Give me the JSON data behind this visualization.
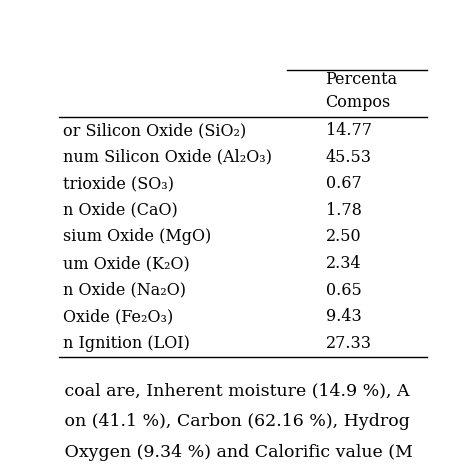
{
  "header_line1": "Percenta",
  "header_line2": "Compos",
  "rows": [
    [
      "or Silicon Oxide (SiO₂)",
      "14.77"
    ],
    [
      "num Silicon Oxide (Al₂O₃)",
      "45.53"
    ],
    [
      "trioxide (SO₃)",
      "0.67"
    ],
    [
      "n Oxide (CaO)",
      "1.78"
    ],
    [
      "sium Oxide (MgO)",
      "2.50"
    ],
    [
      "um Oxide (K₂O)",
      "2.34"
    ],
    [
      "n Oxide (Na₂O)",
      "0.65"
    ],
    [
      "Oxide (Fe₂O₃)",
      "9.43"
    ],
    [
      "n Ignition (LOI)",
      "27.33"
    ]
  ],
  "footer_lines": [
    " coal are, Inherent moisture (14.9 %), A",
    " on (41.1 %), Carbon (62.16 %), Hydrog",
    " Oxygen (9.34 %) and Calorific value (M"
  ],
  "bg_color": "#ffffff",
  "text_color": "#000000",
  "font_size": 11.5,
  "header_font_size": 11.5
}
